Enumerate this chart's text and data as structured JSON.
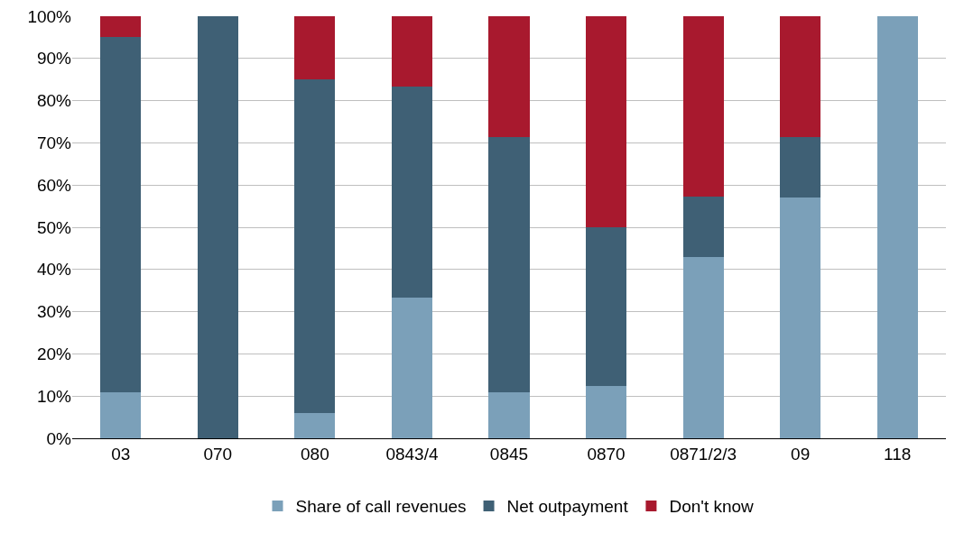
{
  "chart_data": {
    "type": "bar",
    "stacked": true,
    "categories": [
      "03",
      "070",
      "080",
      "0843/4",
      "0845",
      "0870",
      "0871/2/3",
      "09",
      "118"
    ],
    "series": [
      {
        "name": "Share of call revenues",
        "color": "#7ba0b9",
        "values": [
          11,
          0,
          6,
          33.3,
          11,
          12.5,
          42.9,
          57.1,
          100
        ]
      },
      {
        "name": "Net outpayment",
        "color": "#3f6075",
        "values": [
          84,
          100,
          79,
          50,
          60.4,
          37.5,
          14.3,
          14.3,
          0
        ]
      },
      {
        "name": "Don't know",
        "color": "#a8192e",
        "values": [
          5,
          0,
          15,
          16.7,
          28.6,
          50,
          42.8,
          28.6,
          0
        ]
      }
    ],
    "ylim": [
      0,
      100
    ],
    "yticks": [
      {
        "value": 0,
        "label": "0%"
      },
      {
        "value": 10,
        "label": "10%"
      },
      {
        "value": 20,
        "label": "20%"
      },
      {
        "value": 30,
        "label": "30%"
      },
      {
        "value": 40,
        "label": "40%"
      },
      {
        "value": 50,
        "label": "50%"
      },
      {
        "value": 60,
        "label": "60%"
      },
      {
        "value": 70,
        "label": "70%"
      },
      {
        "value": 80,
        "label": "80%"
      },
      {
        "value": 90,
        "label": "90%"
      },
      {
        "value": 100,
        "label": "100%"
      }
    ],
    "grid": "y",
    "legend": "bottom"
  }
}
